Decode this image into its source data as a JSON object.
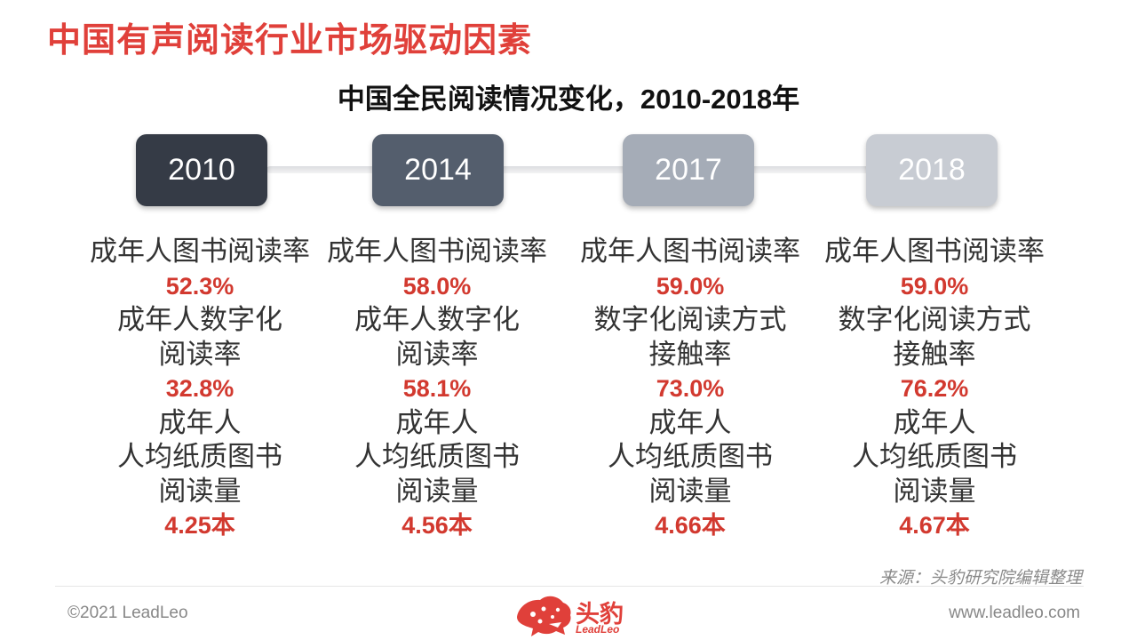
{
  "page_title": "中国有声阅读行业市场驱动因素",
  "subtitle": "中国全民阅读情况变化，2010-2018年",
  "timeline": [
    {
      "year": "2010",
      "color": "#353b46",
      "metric1_label": "成年人图书阅读率",
      "metric1_value": "52.3%",
      "metric2_label_line1": "成年人数字化",
      "metric2_label_line2": "阅读率",
      "metric2_value": "32.8%",
      "metric3_label_line1": "成年人",
      "metric3_label_line2": "人均纸质图书",
      "metric3_label_line3": "阅读量",
      "metric3_value": "4.25本"
    },
    {
      "year": "2014",
      "color": "#545e6d",
      "metric1_label": "成年人图书阅读率",
      "metric1_value": "58.0%",
      "metric2_label_line1": "成年人数字化",
      "metric2_label_line2": "阅读率",
      "metric2_value": "58.1%",
      "metric3_label_line1": "成年人",
      "metric3_label_line2": "人均纸质图书",
      "metric3_label_line3": "阅读量",
      "metric3_value": "4.56本"
    },
    {
      "year": "2017",
      "color": "#a5acb7",
      "metric1_label": "成年人图书阅读率",
      "metric1_value": "59.0%",
      "metric2_label_line1": "数字化阅读方式",
      "metric2_label_line2": "接触率",
      "metric2_value": "73.0%",
      "metric3_label_line1": "成年人",
      "metric3_label_line2": "人均纸质图书",
      "metric3_label_line3": "阅读量",
      "metric3_value": "4.66本"
    },
    {
      "year": "2018",
      "color": "#c8ccd3",
      "metric1_label": "成年人图书阅读率",
      "metric1_value": "59.0%",
      "metric2_label_line1": "数字化阅读方式",
      "metric2_label_line2": "接触率",
      "metric2_value": "76.2%",
      "metric3_label_line1": "成年人",
      "metric3_label_line2": "人均纸质图书",
      "metric3_label_line3": "阅读量",
      "metric3_value": "4.67本"
    }
  ],
  "source": "来源：头豹研究院编辑整理",
  "footer": {
    "copyright": "©2021 LeadLeo",
    "website": "www.leadleo.com",
    "logo_text": "头豹",
    "logo_sub": "LeadLeo",
    "logo_icon": "leopard-head-icon",
    "brand_color": "#e0403a"
  }
}
